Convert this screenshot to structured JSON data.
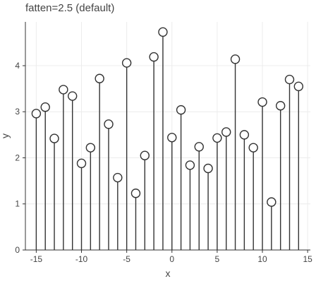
{
  "chart_data": {
    "type": "scatter",
    "title": "fatten=2.5 (default)",
    "xlabel": "x",
    "ylabel": "y",
    "xlim": [
      -16.2,
      15.3
    ],
    "ylim": [
      0,
      4.95
    ],
    "x_ticks": [
      -15,
      -10,
      -5,
      0,
      5,
      10,
      15
    ],
    "x_tick_labels": [
      "-15",
      "-10",
      "-5",
      "0",
      "5",
      "10",
      "15"
    ],
    "y_ticks": [
      0,
      1,
      2,
      3,
      4
    ],
    "y_tick_labels": [
      "0",
      "1",
      "2",
      "3",
      "4"
    ],
    "grid": true,
    "series": [
      {
        "marker": "open-circle",
        "stem_from": 0,
        "x": [
          -15,
          -14,
          -13,
          -12,
          -11,
          -10,
          -9,
          -8,
          -7,
          -6,
          -5,
          -4,
          -3,
          -2,
          -1,
          0,
          1,
          2,
          3,
          4,
          5,
          6,
          7,
          8,
          9,
          10,
          11,
          12,
          13,
          14
        ],
        "y": [
          2.96,
          3.1,
          2.42,
          3.48,
          3.34,
          1.88,
          2.22,
          3.72,
          2.73,
          1.57,
          4.06,
          1.23,
          2.05,
          4.19,
          4.73,
          2.44,
          3.04,
          1.84,
          2.24,
          1.77,
          2.43,
          2.56,
          4.14,
          2.5,
          2.22,
          3.21,
          1.04,
          3.13,
          3.7,
          3.55
        ]
      }
    ],
    "colors": {
      "stem": "#333333",
      "marker_fill": "#ffffff",
      "marker_stroke": "#333333",
      "grid": "#ececec",
      "axis": "#333333",
      "tick_text": "#444444"
    }
  }
}
